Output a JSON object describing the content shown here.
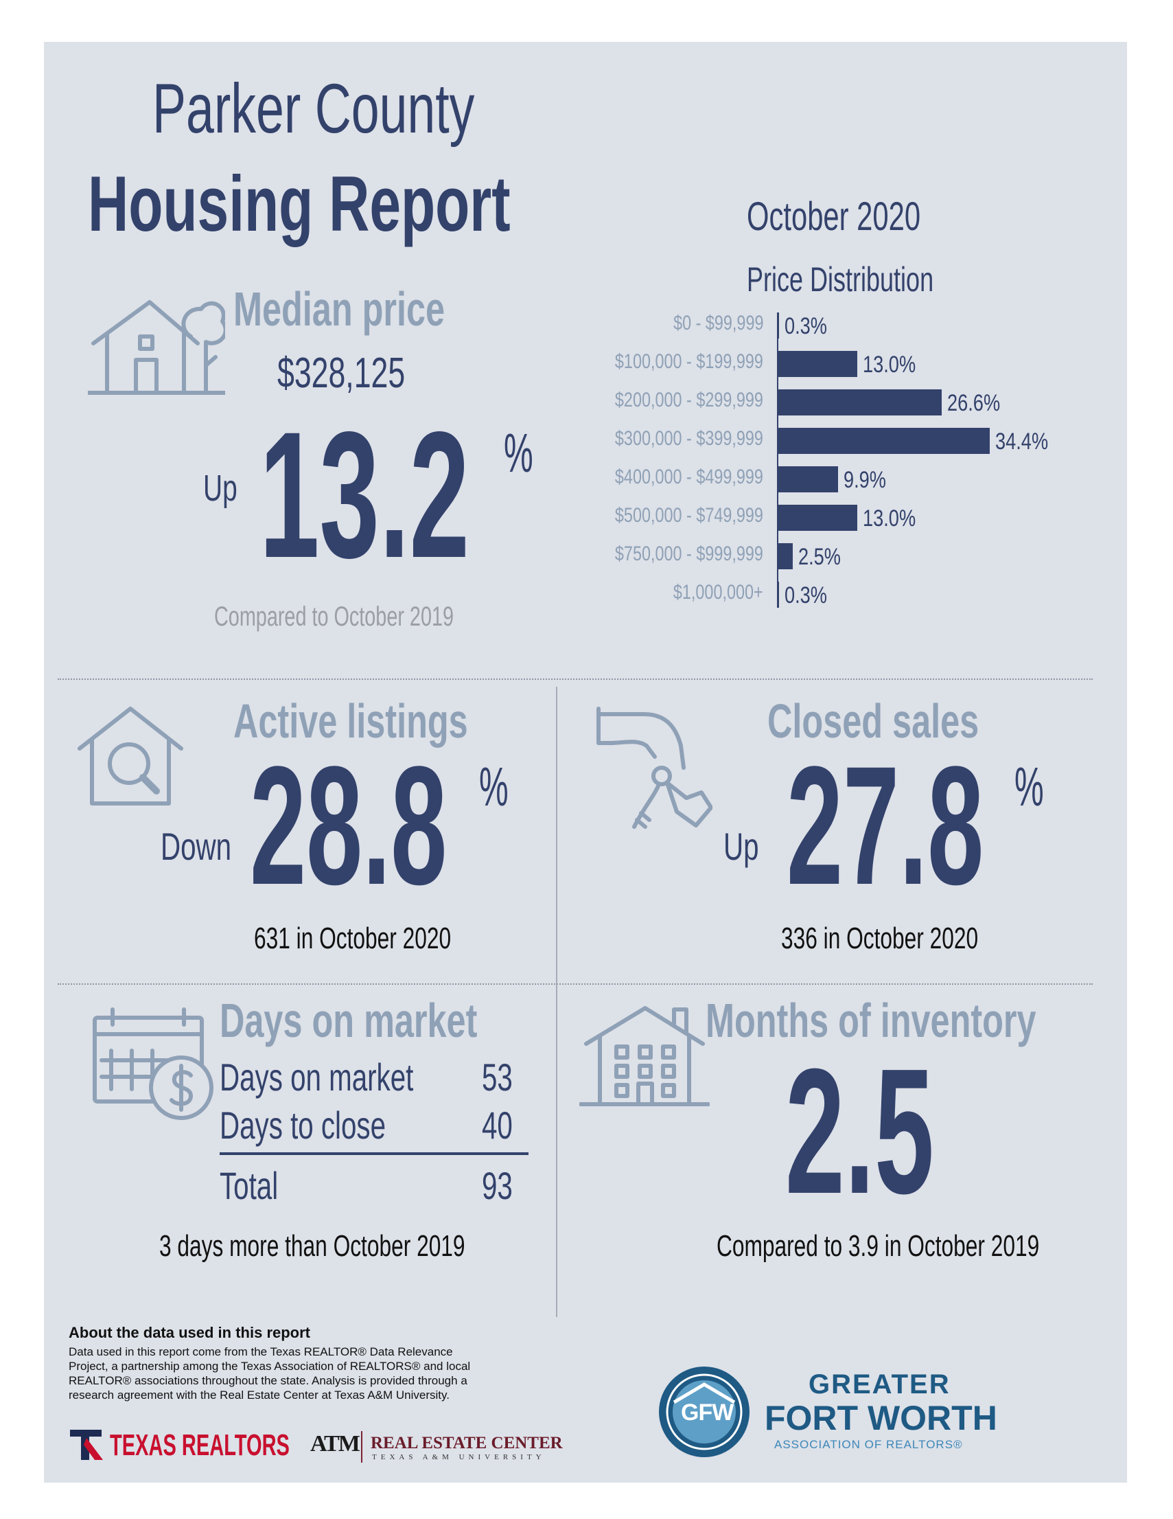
{
  "header": {
    "county": "Parker County",
    "title": "Housing Report",
    "period": "October 2020"
  },
  "median_price": {
    "heading": "Median price",
    "value": "$328,125",
    "direction": "Up",
    "change": "13.2",
    "percent_sign": "%",
    "comparison": "Compared to October 2019"
  },
  "chart_data": {
    "type": "bar",
    "orientation": "horizontal",
    "title": "Price Distribution",
    "categories": [
      "$0 - $99,999",
      "$100,000 - $199,999",
      "$200,000 - $299,999",
      "$300,000 - $399,999",
      "$400,000 - $499,999",
      "$500,000 - $749,999",
      "$750,000 - $999,999",
      "$1,000,000+"
    ],
    "values": [
      0.3,
      13.0,
      26.6,
      34.4,
      9.9,
      13.0,
      2.5,
      0.3
    ],
    "value_labels": [
      "0.3%",
      "13.0%",
      "26.6%",
      "34.4%",
      "9.9%",
      "13.0%",
      "2.5%",
      "0.3%"
    ],
    "xlim": [
      0,
      34.4
    ],
    "grid": false,
    "color": "#33426b"
  },
  "active_listings": {
    "heading": "Active listings",
    "direction": "Down",
    "change": "28.8",
    "percent_sign": "%",
    "detail": "631 in October 2020"
  },
  "closed_sales": {
    "heading": "Closed sales",
    "direction": "Up",
    "change": "27.8",
    "percent_sign": "%",
    "detail": "336 in October 2020"
  },
  "days_on_market": {
    "heading": "Days on market",
    "rows": [
      {
        "label": "Days on market",
        "value": "53"
      },
      {
        "label": "Days to close",
        "value": "40"
      }
    ],
    "total_label": "Total",
    "total_value": "93",
    "comparison": "3 days more than October 2019"
  },
  "months_inventory": {
    "heading": "Months of inventory",
    "value": "2.5",
    "comparison": "Compared to 3.9 in October 2019"
  },
  "about": {
    "heading": "About the data used in this report",
    "body": "Data used in this report come from the Texas REALTOR® Data Relevance Project, a partnership among the Texas Association of REALTORS® and local REALTOR® associations throughout the state. Analysis is provided through a research agreement with the Real Estate Center at Texas A&M University."
  },
  "logos": {
    "texas_realtors": "TEXAS REALTORS",
    "tamu_mark": "ATM",
    "rec_title": "REAL ESTATE CENTER",
    "rec_sub": "TEXAS A&M UNIVERSITY",
    "gfw_mark": "GFW",
    "gfw_line1": "GREATER",
    "gfw_line2": "FORT WORTH",
    "gfw_line3": "ASSOCIATION OF REALTORS®"
  },
  "colors": {
    "navy": "#33426b",
    "steel": "#8fa1b6",
    "panel": "#dde1e8",
    "realtor_red": "#c8102e",
    "gfw_blue": "#1e5a84"
  },
  "icons": [
    "house-tree-icon",
    "house-search-icon",
    "hand-keys-icon",
    "calendar-dollar-icon",
    "building-icon"
  ]
}
